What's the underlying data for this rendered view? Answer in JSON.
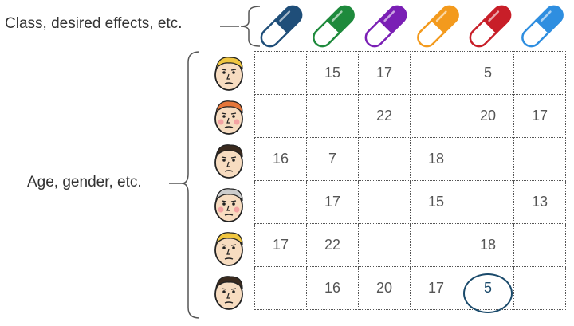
{
  "labels": {
    "top": "Class, desired effects, etc.",
    "side": "Age, gender, etc."
  },
  "pills": [
    {
      "icon": "pill-icon",
      "color": "#1f4e79"
    },
    {
      "icon": "pill-icon",
      "color": "#1e8a3c"
    },
    {
      "icon": "pill-icon",
      "color": "#7a1fb5"
    },
    {
      "icon": "pill-icon",
      "color": "#f39a1d"
    },
    {
      "icon": "pill-icon",
      "color": "#c81e28"
    },
    {
      "icon": "pill-icon",
      "color": "#2e8ee0"
    }
  ],
  "faces": [
    {
      "icon": "face-icon",
      "hair": "#f0c640",
      "cheeks": false
    },
    {
      "icon": "face-icon",
      "hair": "#e5763a",
      "cheeks": true
    },
    {
      "icon": "face-icon",
      "hair": "#3a2a1e",
      "cheeks": false
    },
    {
      "icon": "face-icon",
      "hair": "#cccccc",
      "cheeks": true
    },
    {
      "icon": "face-icon",
      "hair": "#f0c640",
      "cheeks": false
    },
    {
      "icon": "face-icon",
      "hair": "#3a2a1e",
      "cheeks": false
    }
  ],
  "grid": [
    [
      "",
      "15",
      "17",
      "",
      "5",
      ""
    ],
    [
      "",
      "",
      "22",
      "",
      "20",
      "17"
    ],
    [
      "16",
      "7",
      "",
      "18",
      "",
      ""
    ],
    [
      "",
      "17",
      "",
      "15",
      "",
      "13"
    ],
    [
      "17",
      "22",
      "",
      "",
      "18",
      ""
    ],
    [
      "",
      "16",
      "20",
      "17",
      "5",
      ""
    ]
  ],
  "highlight": {
    "row": 5,
    "col": 4,
    "color": "#1a4a6b"
  }
}
